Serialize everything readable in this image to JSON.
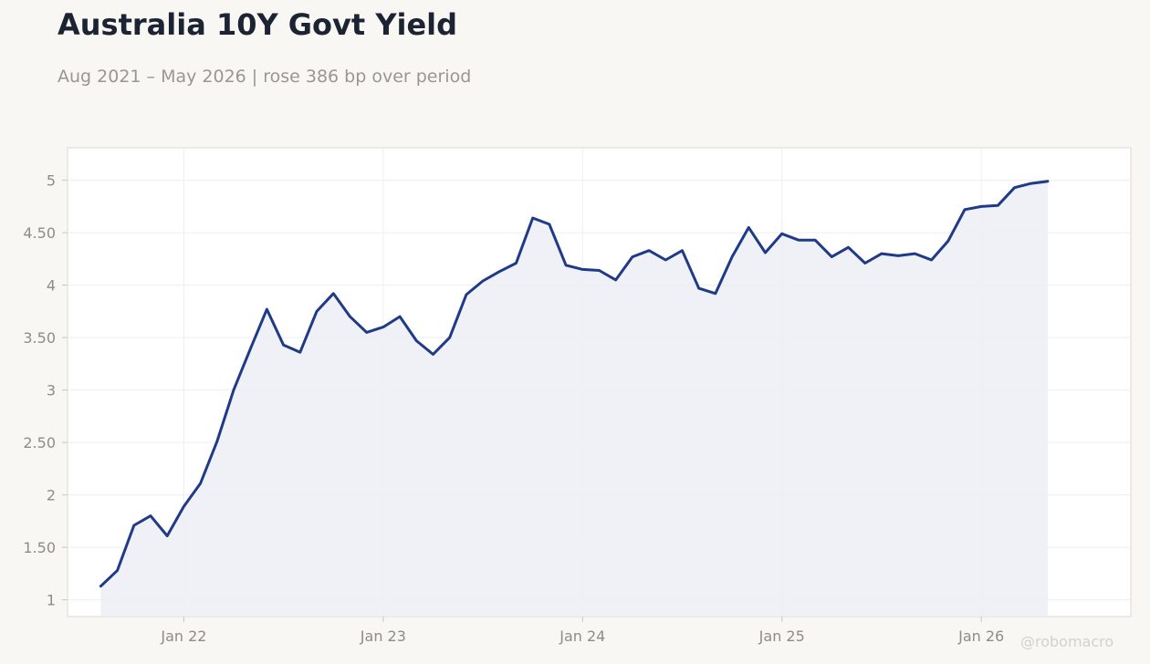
{
  "header": {
    "title": "Australia 10Y Govt Yield",
    "subtitle": "Aug 2021 – May 2026 | rose 386 bp over period"
  },
  "watermark": "@robomacro",
  "colors": {
    "line": "#1f3a87",
    "area": "#eceef5",
    "plot_bg": "#ffffff",
    "page_bg": "#f8f7f4",
    "grid": "#eeeeee",
    "frame": "#dcdad5"
  },
  "chart_data": {
    "type": "area",
    "title": "Australia 10Y Govt Yield",
    "x": [
      "2021-08",
      "2021-09",
      "2021-10",
      "2021-11",
      "2021-12",
      "2022-01",
      "2022-02",
      "2022-03",
      "2022-04",
      "2022-05",
      "2022-06",
      "2022-07",
      "2022-08",
      "2022-09",
      "2022-10",
      "2022-11",
      "2022-12",
      "2023-01",
      "2023-02",
      "2023-03",
      "2023-04",
      "2023-05",
      "2023-06",
      "2023-07",
      "2023-08",
      "2023-09",
      "2023-10",
      "2023-11",
      "2023-12",
      "2024-01",
      "2024-02",
      "2024-03",
      "2024-04",
      "2024-05",
      "2024-06",
      "2024-07",
      "2024-08",
      "2024-09",
      "2024-10",
      "2024-11",
      "2024-12",
      "2025-01",
      "2025-02",
      "2025-03",
      "2025-04",
      "2025-05",
      "2025-06",
      "2025-07",
      "2025-08",
      "2025-09",
      "2025-10",
      "2025-11",
      "2025-12",
      "2026-01",
      "2026-02",
      "2026-03",
      "2026-04",
      "2026-05"
    ],
    "values": [
      1.13,
      1.28,
      1.71,
      1.8,
      1.61,
      1.89,
      2.11,
      2.51,
      3.0,
      3.39,
      3.77,
      3.43,
      3.36,
      3.75,
      3.92,
      3.7,
      3.55,
      3.6,
      3.7,
      3.47,
      3.34,
      3.5,
      3.91,
      4.04,
      4.13,
      4.21,
      4.64,
      4.58,
      4.19,
      4.15,
      4.14,
      4.05,
      4.27,
      4.33,
      4.24,
      4.33,
      3.97,
      3.92,
      4.27,
      4.55,
      4.31,
      4.49,
      4.43,
      4.43,
      4.27,
      4.36,
      4.21,
      4.3,
      4.28,
      4.3,
      4.24,
      4.42,
      4.72,
      4.75,
      4.76,
      4.93,
      4.97,
      4.99
    ],
    "x_ticks": [
      "2022-01",
      "2023-01",
      "2024-01",
      "2025-01",
      "2026-01"
    ],
    "x_tick_labels": [
      "Jan 22",
      "Jan 23",
      "Jan 24",
      "Jan 25",
      "Jan 26"
    ],
    "y_ticks": [
      1,
      1.5,
      2,
      2.5,
      3,
      3.5,
      4,
      4.5,
      5
    ],
    "y_tick_labels": [
      "1",
      "1.50",
      "2",
      "2.50",
      "3",
      "3.50",
      "4",
      "4.50",
      "5"
    ],
    "xlim": [
      "2021-06",
      "2026-10"
    ],
    "ylim": [
      0.84,
      5.31
    ],
    "grid": true,
    "legend": "none"
  }
}
